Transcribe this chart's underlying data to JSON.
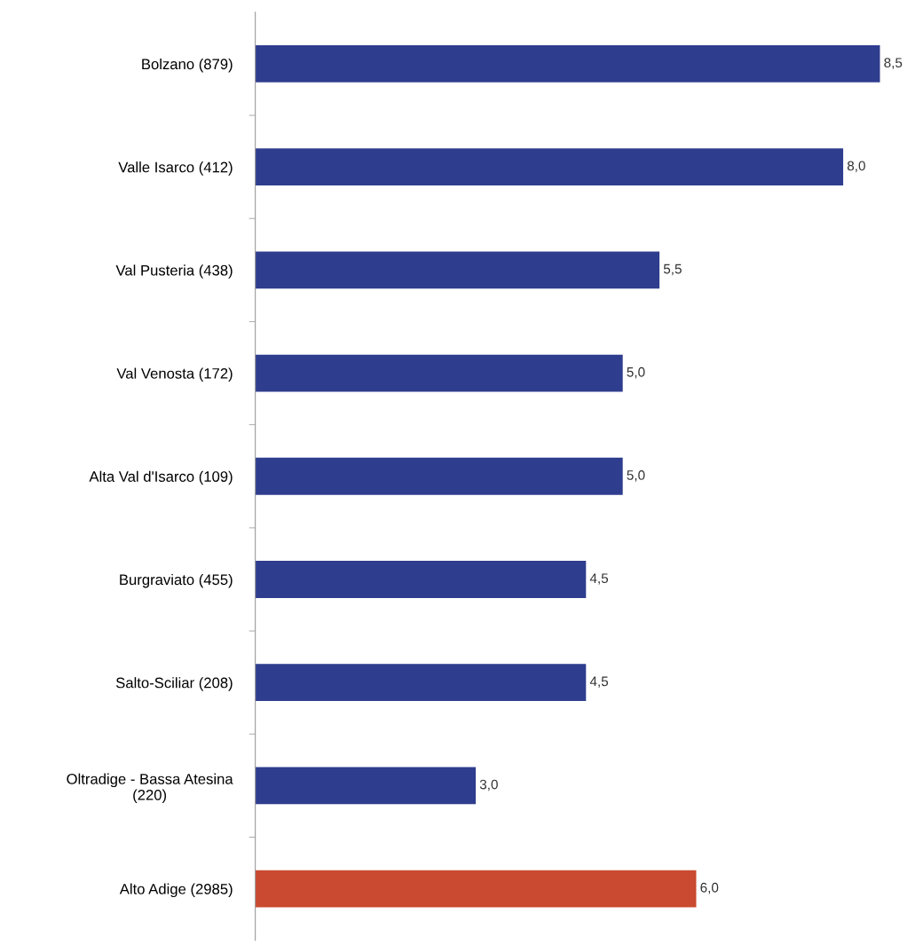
{
  "chart_data": {
    "type": "bar",
    "orientation": "horizontal",
    "categories": [
      "Bolzano (879)",
      "Valle Isarco (412)",
      "Val Pusteria (438)",
      "Val Venosta (172)",
      "Alta Val d'Isarco (109)",
      "Burgraviato (455)",
      "Salto-Sciliar (208)",
      "Oltradige - Bassa Atesina\n(220)",
      "Alto Adige (2985)"
    ],
    "values": [
      8.5,
      8.0,
      5.5,
      5.0,
      5.0,
      4.5,
      4.5,
      3.0,
      6.0
    ],
    "value_labels": [
      "8,5",
      "8,0",
      "5,5",
      "5,0",
      "5,0",
      "4,5",
      "4,5",
      "3,0",
      "6,0"
    ],
    "colors": [
      "#2e3d8e",
      "#2e3d8e",
      "#2e3d8e",
      "#2e3d8e",
      "#2e3d8e",
      "#2e3d8e",
      "#2e3d8e",
      "#2e3d8e",
      "#c94a30"
    ],
    "tick_labels": "y",
    "grid": false,
    "legend": false
  }
}
